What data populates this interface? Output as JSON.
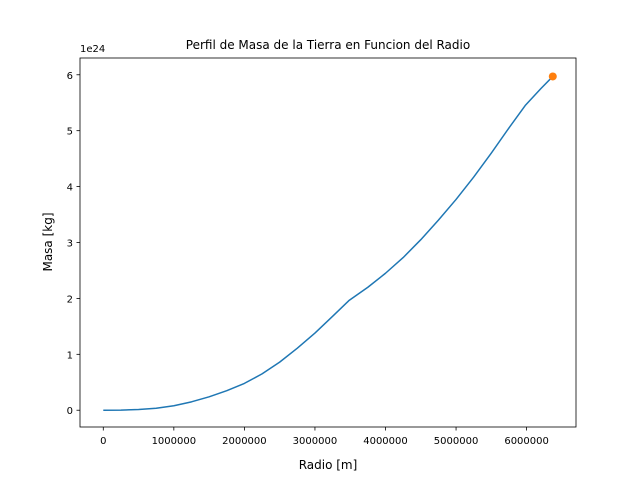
{
  "chart_data": {
    "type": "line",
    "title": "Perfil de Masa de la Tierra en Funcion del Radio",
    "xlabel": "Radio [m]",
    "ylabel": "Masa [kg]",
    "y_offset_label": "1e24",
    "xlim": [
      -330000,
      6700000
    ],
    "ylim": [
      -0.3,
      6.3
    ],
    "x_ticks": [
      0,
      1000000,
      2000000,
      3000000,
      4000000,
      5000000,
      6000000
    ],
    "x_tick_labels": [
      "0",
      "1000000",
      "2000000",
      "3000000",
      "4000000",
      "5000000",
      "6000000"
    ],
    "y_ticks": [
      0,
      1,
      2,
      3,
      4,
      5,
      6
    ],
    "y_tick_labels": [
      "0",
      "1",
      "2",
      "3",
      "4",
      "5",
      "6"
    ],
    "grid": false,
    "series": [
      {
        "color": "#1f77b4",
        "x": [
          0,
          250000,
          500000,
          750000,
          1000000,
          1250000,
          1500000,
          1750000,
          2000000,
          2250000,
          2500000,
          2750000,
          3000000,
          3250000,
          3480000,
          3750000,
          4000000,
          4250000,
          4500000,
          4750000,
          5000000,
          5250000,
          5500000,
          5750000,
          5980000,
          6200000,
          6371000
        ],
        "values": [
          0,
          0.002,
          0.012,
          0.035,
          0.08,
          0.15,
          0.24,
          0.35,
          0.48,
          0.65,
          0.86,
          1.11,
          1.38,
          1.68,
          1.96,
          2.2,
          2.45,
          2.73,
          3.05,
          3.4,
          3.77,
          4.17,
          4.6,
          5.05,
          5.45,
          5.75,
          5.97
        ]
      },
      {
        "color": "#ff7f0e",
        "marker": "circle",
        "x": [
          6371000
        ],
        "values": [
          5.97
        ]
      }
    ]
  }
}
